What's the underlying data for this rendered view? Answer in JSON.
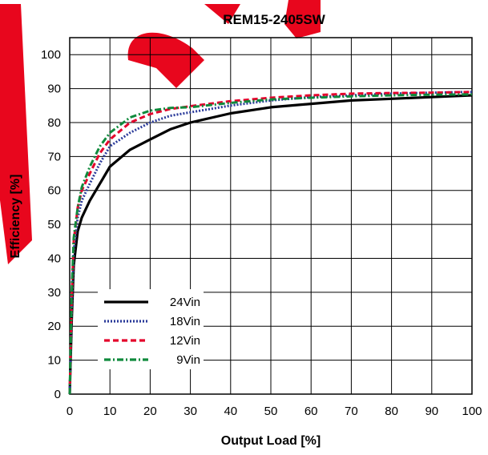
{
  "chart_data": {
    "type": "line",
    "title": "REM15-2405SW",
    "xlabel": "Output Load [%]",
    "ylabel": "Efficiency [%]",
    "xlim": [
      0,
      100
    ],
    "ylim": [
      0,
      105
    ],
    "xticks": [
      0,
      10,
      20,
      30,
      40,
      50,
      60,
      70,
      80,
      90,
      100
    ],
    "yticks": [
      0,
      10,
      20,
      30,
      40,
      50,
      60,
      70,
      80,
      90,
      100
    ],
    "grid": true,
    "legend_position": "bottom-left",
    "series": [
      {
        "name": "24Vin",
        "color": "#000000",
        "dash": "solid",
        "points": [
          [
            0,
            0
          ],
          [
            0.5,
            22
          ],
          [
            1,
            38
          ],
          [
            2,
            48
          ],
          [
            3,
            52
          ],
          [
            5,
            57
          ],
          [
            7.5,
            62
          ],
          [
            10,
            67
          ],
          [
            15,
            72
          ],
          [
            20,
            75
          ],
          [
            25,
            78
          ],
          [
            30,
            80
          ],
          [
            40,
            82.7
          ],
          [
            50,
            84.5
          ],
          [
            60,
            85.5
          ],
          [
            70,
            86.5
          ],
          [
            80,
            87
          ],
          [
            90,
            87.5
          ],
          [
            100,
            88
          ]
        ]
      },
      {
        "name": "18Vin",
        "color": "#2b3b9a",
        "dash": "dotted",
        "points": [
          [
            0,
            0
          ],
          [
            0.5,
            25
          ],
          [
            1,
            42
          ],
          [
            2,
            52
          ],
          [
            3,
            57
          ],
          [
            5,
            62
          ],
          [
            7.5,
            68
          ],
          [
            10,
            73
          ],
          [
            15,
            77
          ],
          [
            20,
            80
          ],
          [
            25,
            82
          ],
          [
            30,
            83
          ],
          [
            40,
            85
          ],
          [
            50,
            86.5
          ],
          [
            60,
            87.5
          ],
          [
            70,
            88
          ],
          [
            80,
            88.5
          ],
          [
            90,
            88.8
          ],
          [
            100,
            89
          ]
        ]
      },
      {
        "name": "12Vin",
        "color": "#e4002b",
        "dash": "dashed",
        "points": [
          [
            0,
            0
          ],
          [
            0.5,
            28
          ],
          [
            1,
            45
          ],
          [
            2,
            55
          ],
          [
            3,
            60
          ],
          [
            5,
            65
          ],
          [
            7.5,
            71
          ],
          [
            10,
            75
          ],
          [
            15,
            80
          ],
          [
            20,
            82.5
          ],
          [
            25,
            84
          ],
          [
            30,
            84.8
          ],
          [
            40,
            86.3
          ],
          [
            50,
            87.3
          ],
          [
            60,
            88
          ],
          [
            70,
            88.5
          ],
          [
            80,
            88.7
          ],
          [
            90,
            88.8
          ],
          [
            100,
            89
          ]
        ]
      },
      {
        "name": "9Vin",
        "color": "#0f8a3c",
        "dash": "dashdot",
        "points": [
          [
            0,
            0
          ],
          [
            0.5,
            30
          ],
          [
            1,
            46
          ],
          [
            2,
            55
          ],
          [
            3,
            61
          ],
          [
            5,
            67
          ],
          [
            7.5,
            73
          ],
          [
            10,
            77
          ],
          [
            15,
            81.5
          ],
          [
            20,
            83.5
          ],
          [
            25,
            84.3
          ],
          [
            30,
            84.5
          ],
          [
            40,
            85.8
          ],
          [
            50,
            86.8
          ],
          [
            60,
            87.3
          ],
          [
            70,
            87.7
          ],
          [
            80,
            88
          ],
          [
            90,
            88.2
          ],
          [
            100,
            88.3
          ]
        ]
      }
    ]
  }
}
